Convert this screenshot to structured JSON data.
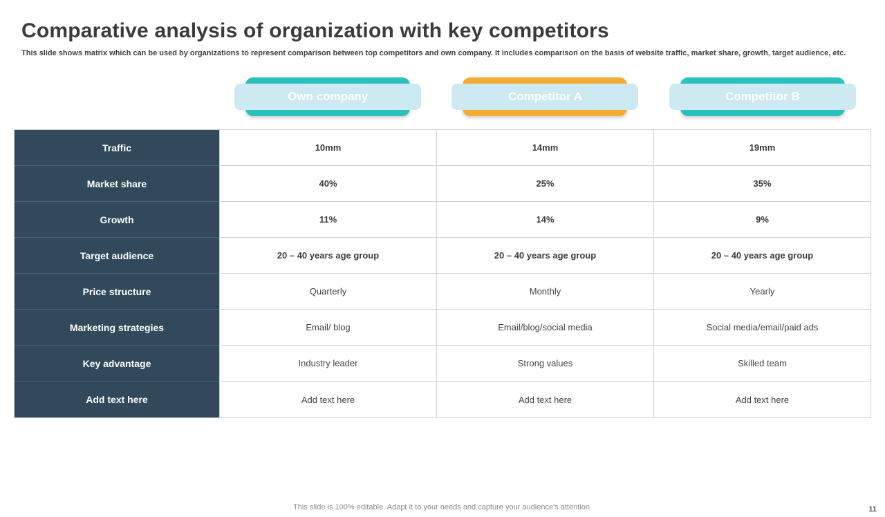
{
  "slide": {
    "title": "Comparative analysis of organization with key competitors",
    "subtitle": "This slide shows matrix which can be used by organizations to represent comparison between top competitors and own company. It includes comparison on the basis of website traffic, market share, growth, target audience, etc.",
    "footer": "This slide is 100% editable. Adapt it to your needs and capture your audience's attention.",
    "page_number": "11"
  },
  "colors": {
    "teal": "#2bc2bd",
    "orange": "#f2ac33",
    "pill_backing": "#cdeaf2",
    "row_header_bg": "#31495a",
    "title_text": "#3b3b3b"
  },
  "columns": [
    {
      "label": "Own company",
      "color": "#2bc2bd"
    },
    {
      "label": "Competitor A",
      "color": "#f2ac33"
    },
    {
      "label": "Competitor B",
      "color": "#2bc2bd"
    }
  ],
  "table": {
    "rows": [
      {
        "header": "Traffic",
        "values": [
          "10mm",
          "14mm",
          "19mm"
        ]
      },
      {
        "header": "Market share",
        "values": [
          "40%",
          "25%",
          "35%"
        ]
      },
      {
        "header": "Growth",
        "values": [
          "11%",
          "14%",
          "9%"
        ]
      },
      {
        "header": "Target audience",
        "values": [
          "20 – 40 years age group",
          "20 – 40 years age group",
          "20 – 40 years age group"
        ]
      },
      {
        "header": "Price structure",
        "values": [
          "Quarterly",
          "Monthly",
          "Yearly"
        ]
      },
      {
        "header": "Marketing strategies",
        "values": [
          "Email/ blog",
          "Email/blog/social media",
          "Social media/email/paid ads"
        ]
      },
      {
        "header": "Key advantage",
        "values": [
          "Industry leader",
          "Strong values",
          "Skilled team"
        ]
      },
      {
        "header": "Add text here",
        "values": [
          "Add text here",
          "Add text here",
          "Add text here"
        ]
      }
    ]
  }
}
